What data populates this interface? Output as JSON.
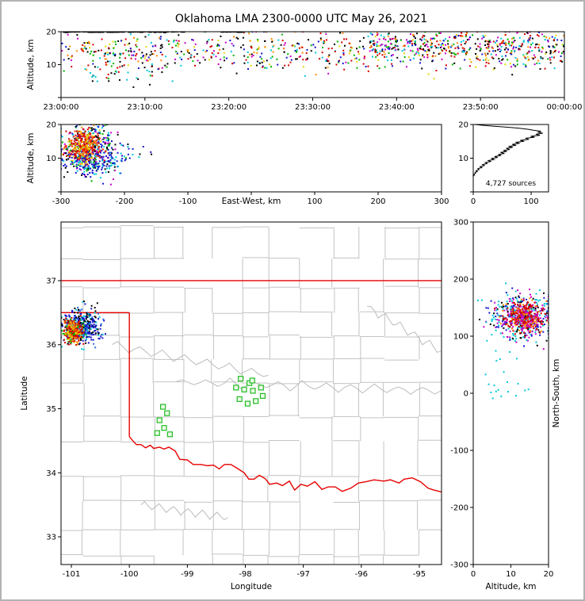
{
  "title": "Oklahoma LMA 2300-0000 UTC May 26, 2021",
  "chart_data": [
    {
      "id": "time_height",
      "type": "scatter",
      "ylabel": "Altitude, km",
      "xlim": [
        0,
        3600
      ],
      "ylim": [
        0,
        20
      ],
      "xticks": {
        "values": [
          0,
          600,
          1200,
          1800,
          2400,
          3000,
          3600
        ],
        "labels": [
          "23:00:00",
          "23:10:00",
          "23:20:00",
          "23:30:00",
          "23:40:00",
          "23:50:00",
          "00:00:00"
        ]
      },
      "yticks": {
        "values": [
          0,
          10,
          20
        ],
        "labels": [
          "",
          "10",
          "20"
        ]
      },
      "clusters": [
        {
          "type": "ux",
          "x0": 0,
          "x1": 3600,
          "cy": 14,
          "sy": 3,
          "n": 780,
          "seed": 11,
          "colors": [
            "#000000",
            "#d40000",
            "#00b400",
            "#00c8d8",
            "#cc00cc",
            "#1414cc",
            "#ff8c00",
            "#000000",
            "#d40000",
            "#e6d800"
          ]
        },
        {
          "type": "ux",
          "x0": 2200,
          "x1": 3600,
          "cy": 16.5,
          "sy": 1.8,
          "n": 260,
          "seed": 12,
          "colors": [
            "#000000",
            "#d40000",
            "#00b400",
            "#00c8d8",
            "#cc00cc",
            "#1414cc",
            "#ff8c00"
          ]
        },
        {
          "type": "ux",
          "x0": 150,
          "x1": 800,
          "cy": 6.5,
          "sy": 1.3,
          "n": 28,
          "seed": 13,
          "colors": [
            "#000000",
            "#d40000",
            "#00b400",
            "#00c8d8"
          ]
        },
        {
          "type": "ux",
          "x0": 20,
          "x1": 880,
          "cy": 19.9,
          "sy": 0.08,
          "n": 110,
          "seed": 14,
          "colors": [
            "#000000"
          ],
          "w": 4,
          "h": 1.2
        },
        {
          "type": "ux",
          "x0": 1150,
          "x1": 1300,
          "cy": 19.9,
          "sy": 0.05,
          "n": 16,
          "seed": 15,
          "colors": [
            "#000000"
          ],
          "w": 4,
          "h": 1.2
        }
      ]
    },
    {
      "id": "east_west",
      "type": "scatter",
      "xlabel": "East-West, km",
      "xlabel_at_zero": true,
      "ylabel": "Altitude, km",
      "xlim": [
        -300,
        300
      ],
      "ylim": [
        0,
        20
      ],
      "xticks": {
        "values": [
          -300,
          -200,
          -100,
          0,
          100,
          200,
          300
        ],
        "labels": [
          "-300",
          "-200",
          "-100",
          "",
          "100",
          "200",
          "300"
        ]
      },
      "yticks": {
        "values": [
          0,
          10,
          20
        ],
        "labels": [
          "",
          "10",
          "20"
        ]
      },
      "clusters": [
        {
          "type": "g",
          "cx": -256,
          "cy": 12.5,
          "sx": 21,
          "sy": 3.6,
          "n": 430,
          "seed": 21,
          "colors": [
            "#1414cc",
            "#00b400",
            "#00c8d8",
            "#000000",
            "#cc00cc",
            "#1414cc"
          ]
        },
        {
          "type": "g",
          "cx": -263,
          "cy": 13.5,
          "sx": 13,
          "sy": 2.4,
          "n": 330,
          "seed": 22,
          "colors": [
            "#d40000",
            "#ff8c00",
            "#e6d800",
            "#d40000",
            "#ff4400"
          ]
        },
        {
          "type": "g",
          "cx": -247,
          "cy": 8.2,
          "sx": 24,
          "sy": 1.6,
          "n": 110,
          "seed": 23,
          "colors": [
            "#1414cc",
            "#00c8d8",
            "#1414cc"
          ]
        },
        {
          "type": "ux",
          "x0": -225,
          "x1": -150,
          "cy": 11,
          "sy": 2.2,
          "n": 22,
          "seed": 24,
          "colors": [
            "#00c8d8",
            "#1414cc",
            "#000000"
          ]
        }
      ]
    },
    {
      "id": "histogram",
      "type": "profile",
      "xlim": [
        0,
        130
      ],
      "ylim": [
        0,
        20
      ],
      "xticks": {
        "values": [
          0,
          100
        ],
        "labels": [
          "0",
          "100"
        ]
      },
      "yticks": {
        "values": [
          0,
          10,
          20
        ],
        "labels": [
          "",
          "10",
          "20"
        ]
      },
      "annotation": "4,727 sources",
      "profile": [
        [
          4.6,
          0
        ],
        [
          5,
          2
        ],
        [
          5.2,
          1
        ],
        [
          5.5,
          4
        ],
        [
          5.8,
          3
        ],
        [
          6,
          7
        ],
        [
          6.3,
          5
        ],
        [
          6.6,
          10
        ],
        [
          6.9,
          8
        ],
        [
          7.2,
          15
        ],
        [
          7.5,
          12
        ],
        [
          7.8,
          19
        ],
        [
          8.1,
          16
        ],
        [
          8.4,
          24
        ],
        [
          8.7,
          21
        ],
        [
          9,
          30
        ],
        [
          9.3,
          26
        ],
        [
          9.6,
          36
        ],
        [
          9.9,
          31
        ],
        [
          10.2,
          42
        ],
        [
          10.5,
          37
        ],
        [
          10.8,
          48
        ],
        [
          11.1,
          43
        ],
        [
          11.4,
          54
        ],
        [
          11.7,
          47
        ],
        [
          12,
          58
        ],
        [
          12.3,
          52
        ],
        [
          12.6,
          63
        ],
        [
          12.9,
          57
        ],
        [
          13.2,
          68
        ],
        [
          13.5,
          61
        ],
        [
          13.8,
          74
        ],
        [
          14.1,
          67
        ],
        [
          14.4,
          80
        ],
        [
          14.7,
          73
        ],
        [
          15,
          88
        ],
        [
          15.3,
          81
        ],
        [
          15.6,
          96
        ],
        [
          15.9,
          90
        ],
        [
          16.2,
          106
        ],
        [
          16.5,
          99
        ],
        [
          16.8,
          115
        ],
        [
          17.1,
          108
        ],
        [
          17.4,
          120
        ],
        [
          17.7,
          112
        ],
        [
          18,
          117
        ],
        [
          18.3,
          104
        ],
        [
          18.6,
          94
        ],
        [
          18.9,
          78
        ],
        [
          19.2,
          58
        ],
        [
          19.5,
          34
        ],
        [
          19.8,
          14
        ],
        [
          20,
          3
        ]
      ]
    },
    {
      "id": "map",
      "type": "map",
      "xlabel": "Longitude",
      "ylabel": "Latitude",
      "xlim": [
        -101.178,
        -94.617
      ],
      "ylim": [
        32.567,
        37.916
      ],
      "xticks": {
        "values": [
          -101,
          -100,
          -99,
          -98,
          -97,
          -96,
          -95
        ],
        "labels": [
          "-101",
          "-100",
          "-99",
          "-98",
          "-97",
          "-96",
          "-95"
        ]
      },
      "yticks": {
        "values": [
          33,
          34,
          35,
          36,
          37
        ],
        "labels": [
          "33",
          "34",
          "35",
          "36",
          "37"
        ]
      },
      "counties": {
        "seed": 7,
        "lon_min": -101.6,
        "lon_max": -94.3,
        "lat_min": 32.3,
        "lat_max": 38.1,
        "cell_lon": 0.52,
        "cell_lat": 0.44,
        "keep": 0.84,
        "color": "#c3c3c3"
      },
      "rivers": [
        {
          "from": [
            -99.2,
            35.42
          ],
          "to": [
            -94.63,
            35.28
          ],
          "amp": 0.06,
          "waves": 22,
          "seed": 51
        },
        {
          "from": [
            -95.9,
            36.6
          ],
          "to": [
            -94.63,
            35.9
          ],
          "amp": 0.06,
          "waves": 10,
          "seed": 52
        },
        {
          "from": [
            -100.3,
            36.0
          ],
          "to": [
            -97.6,
            35.52
          ],
          "amp": 0.05,
          "waves": 14,
          "seed": 53
        },
        {
          "from": [
            -99.8,
            33.5
          ],
          "to": [
            -98.3,
            33.3
          ],
          "amp": 0.05,
          "waves": 12,
          "seed": 54
        }
      ],
      "border_color": "#e60000",
      "state_border": [
        [
          [
            -101.178,
            37
          ],
          [
            -94.617,
            37
          ]
        ],
        [
          [
            -101.178,
            36.5
          ],
          [
            -100,
            36.5
          ]
        ],
        [
          [
            -100,
            36.5
          ],
          [
            -100,
            34.563
          ]
        ],
        [
          [
            -100,
            34.563
          ],
          [
            -99.95,
            34.51
          ],
          [
            -99.88,
            34.44
          ],
          [
            -99.8,
            34.44
          ],
          [
            -99.72,
            34.39
          ],
          [
            -99.64,
            34.43
          ],
          [
            -99.58,
            34.38
          ],
          [
            -99.48,
            34.4
          ],
          [
            -99.4,
            34.37
          ],
          [
            -99.32,
            34.4
          ],
          [
            -99.21,
            34.34
          ],
          [
            -99.13,
            34.21
          ],
          [
            -99,
            34.2
          ],
          [
            -98.9,
            34.13
          ],
          [
            -98.77,
            34.13
          ],
          [
            -98.65,
            34.11
          ],
          [
            -98.55,
            34.12
          ],
          [
            -98.45,
            34.06
          ],
          [
            -98.36,
            34.13
          ],
          [
            -98.25,
            34.13
          ],
          [
            -98.14,
            34.07
          ],
          [
            -98.02,
            34
          ],
          [
            -97.94,
            33.9
          ],
          [
            -97.85,
            33.9
          ],
          [
            -97.76,
            33.96
          ],
          [
            -97.66,
            33.91
          ],
          [
            -97.58,
            33.82
          ],
          [
            -97.46,
            33.84
          ],
          [
            -97.36,
            33.8
          ],
          [
            -97.24,
            33.87
          ],
          [
            -97.15,
            33.73
          ],
          [
            -97.04,
            33.82
          ],
          [
            -96.93,
            33.79
          ],
          [
            -96.8,
            33.86
          ],
          [
            -96.68,
            33.74
          ],
          [
            -96.57,
            33.78
          ],
          [
            -96.45,
            33.78
          ],
          [
            -96.33,
            33.71
          ],
          [
            -96.18,
            33.76
          ],
          [
            -96.05,
            33.84
          ],
          [
            -95.92,
            33.86
          ],
          [
            -95.78,
            33.89
          ],
          [
            -95.61,
            33.87
          ],
          [
            -95.5,
            33.89
          ],
          [
            -95.35,
            33.84
          ],
          [
            -95.26,
            33.9
          ],
          [
            -95.12,
            33.92
          ],
          [
            -94.98,
            33.86
          ],
          [
            -94.85,
            33.76
          ],
          [
            -94.75,
            33.73
          ],
          [
            -94.617,
            33.7
          ]
        ]
      ],
      "stations": {
        "outline": "#22bb22",
        "fill": "#eafbe7",
        "size": 6,
        "points": [
          [
            -98.08,
            35.47
          ],
          [
            -97.93,
            35.4
          ],
          [
            -98.16,
            35.33
          ],
          [
            -98.02,
            35.3
          ],
          [
            -97.87,
            35.28
          ],
          [
            -97.73,
            35.33
          ],
          [
            -98.1,
            35.15
          ],
          [
            -97.96,
            35.08
          ],
          [
            -97.82,
            35.12
          ],
          [
            -97.7,
            35.2
          ],
          [
            -97.88,
            35.44
          ],
          [
            -99.42,
            35.03
          ],
          [
            -99.35,
            34.93
          ],
          [
            -99.48,
            34.82
          ],
          [
            -99.4,
            34.7
          ],
          [
            -99.3,
            34.6
          ],
          [
            -99.52,
            34.62
          ]
        ]
      },
      "clusters": [
        {
          "type": "g",
          "cx": -100.82,
          "cy": 36.3,
          "sx": 0.155,
          "sy": 0.135,
          "n": 430,
          "seed": 31,
          "colors": [
            "#1414cc",
            "#2a6cdf",
            "#00c8d8",
            "#000000",
            "#1414cc"
          ]
        },
        {
          "type": "g",
          "cx": -100.96,
          "cy": 36.22,
          "sx": 0.075,
          "sy": 0.085,
          "n": 300,
          "seed": 32,
          "colors": [
            "#d40000",
            "#ff8c00",
            "#e6d800",
            "#00b400",
            "#d40000"
          ]
        }
      ]
    },
    {
      "id": "north_south",
      "type": "scatter",
      "xlabel": "Altitude, km",
      "ylabel": "North-South, km",
      "ylabel_side": "right",
      "xlim": [
        0,
        20
      ],
      "ylim": [
        -300,
        300
      ],
      "xticks": {
        "values": [
          0,
          10,
          20
        ],
        "labels": [
          "0",
          "10",
          "20"
        ]
      },
      "yticks": {
        "values": [
          -300,
          -200,
          -100,
          0,
          100,
          200,
          300
        ],
        "labels": [
          "-300",
          "-200",
          "-100",
          "0",
          "100",
          "200",
          "300"
        ]
      },
      "clusters": [
        {
          "type": "g",
          "cx": 13,
          "cy": 133,
          "sx": 4.2,
          "sy": 21,
          "n": 430,
          "seed": 41,
          "colors": [
            "#00c8d8",
            "#000000",
            "#1414cc",
            "#cc00cc",
            "#00c8d8"
          ]
        },
        {
          "type": "g",
          "cx": 13.5,
          "cy": 133,
          "sx": 2.6,
          "sy": 13,
          "n": 320,
          "seed": 42,
          "colors": [
            "#d40000",
            "#cc00cc",
            "#d40000",
            "#ff8c00"
          ]
        },
        {
          "type": "g",
          "cx": 6,
          "cy": 8,
          "sx": 3.5,
          "sy": 9,
          "n": 12,
          "seed": 43,
          "colors": [
            "#00c8d8"
          ]
        },
        {
          "type": "g",
          "cx": 7,
          "cy": 55,
          "sx": 4,
          "sy": 30,
          "n": 8,
          "seed": 44,
          "colors": [
            "#00c8d8"
          ]
        }
      ]
    }
  ]
}
